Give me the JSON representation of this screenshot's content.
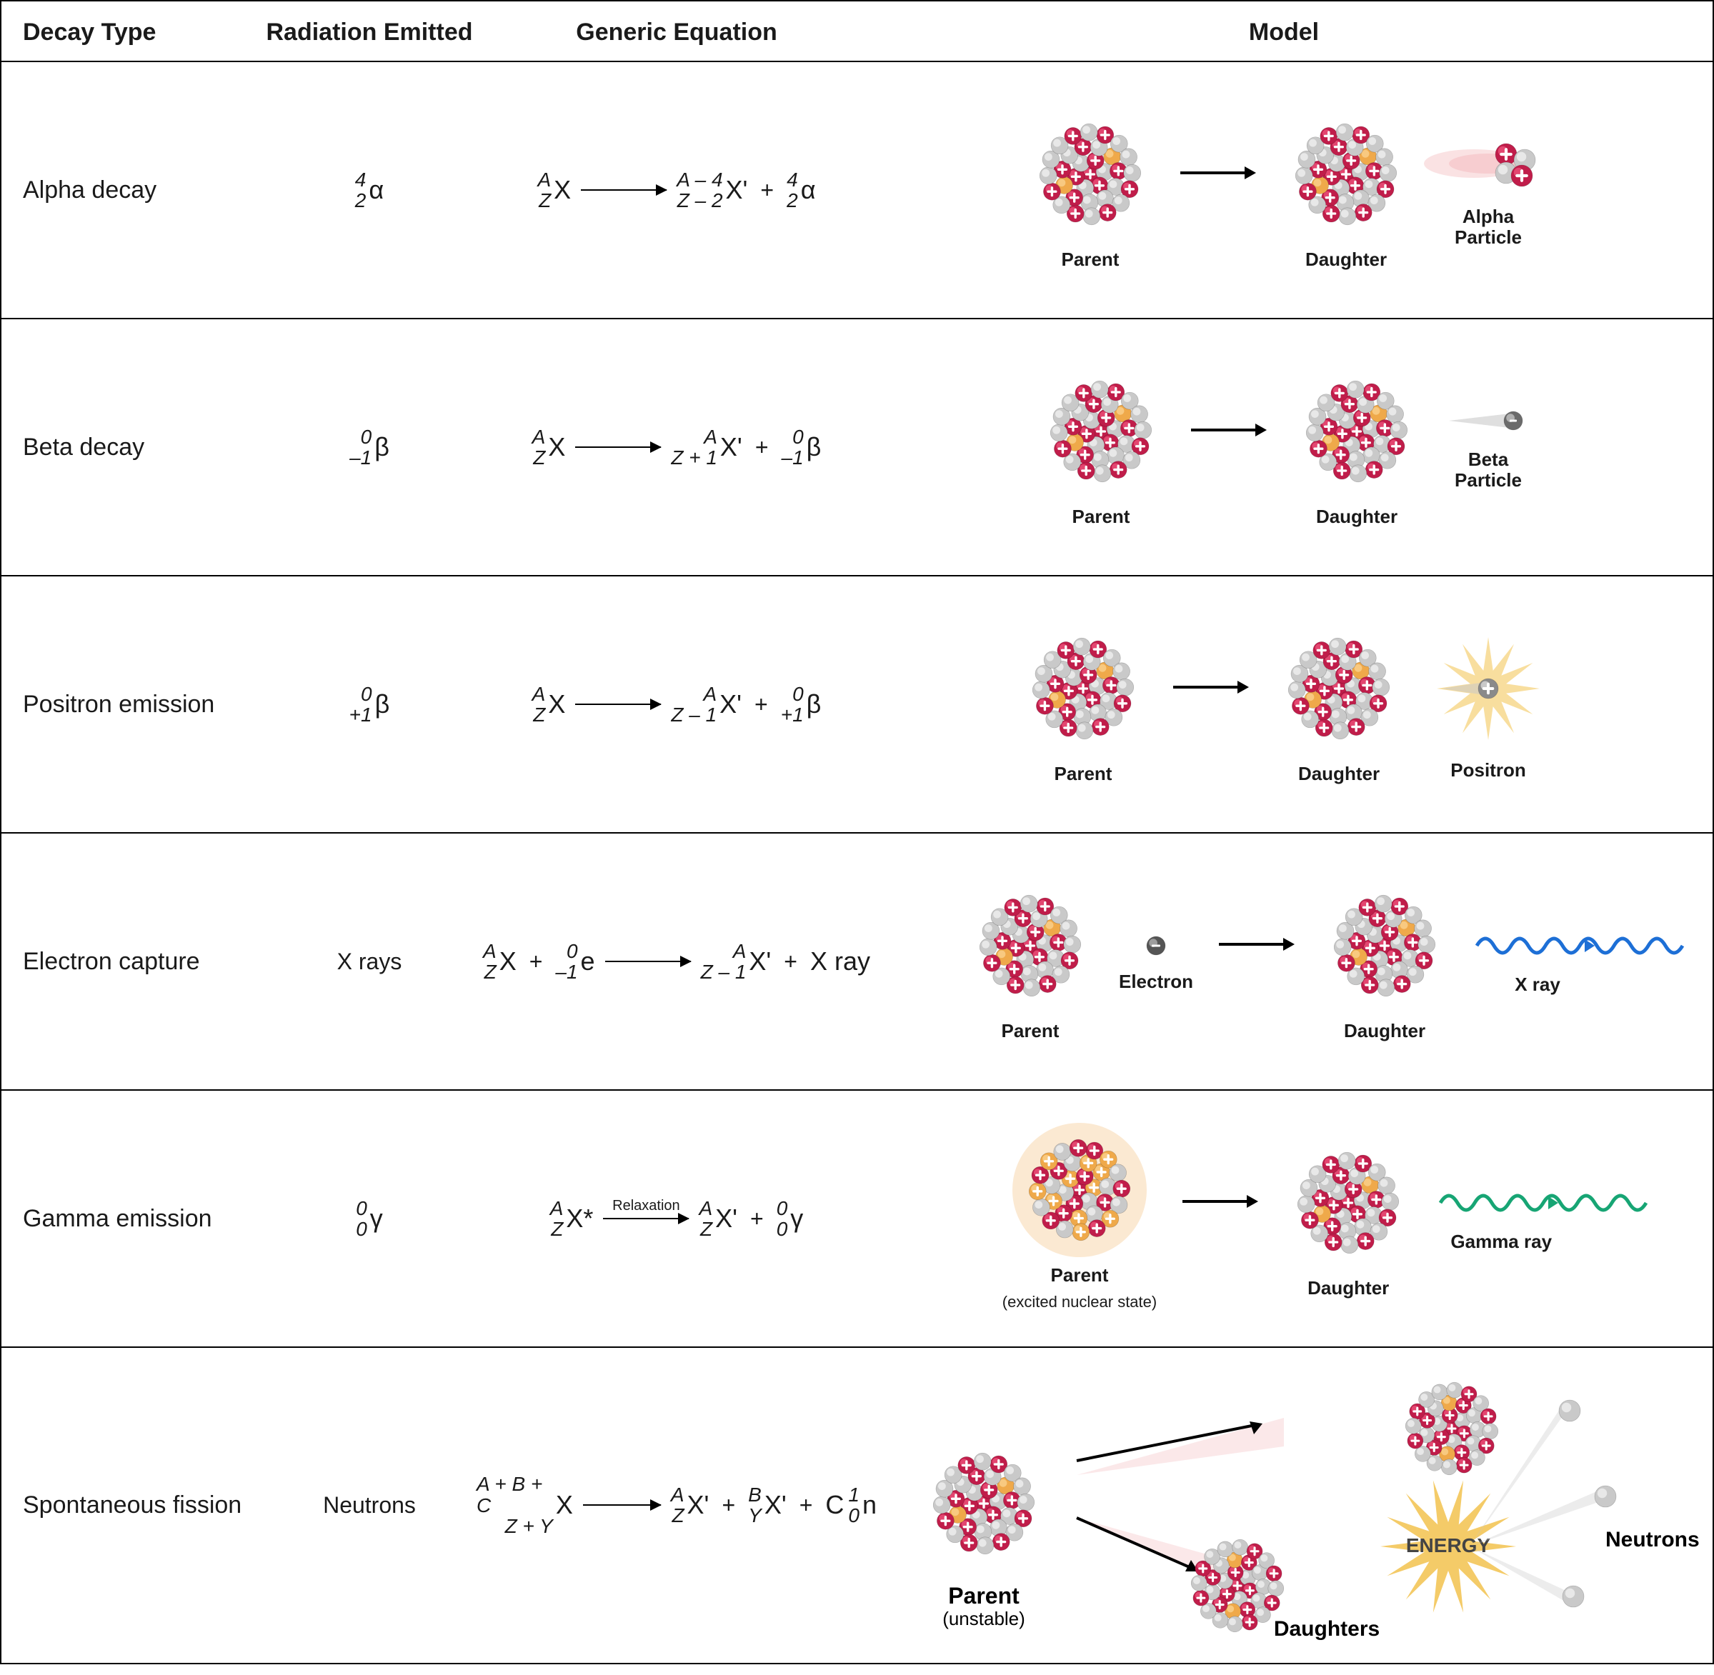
{
  "colors": {
    "proton": "#c01d4a",
    "proton_hi": "#e94d77",
    "neutron": "#c9c9c9",
    "neutron_hi": "#ededed",
    "excited": "#efa94a",
    "excited_hi": "#f9cf89",
    "border": "#000000",
    "xray_wave": "#1d6fd6",
    "gamma_wave": "#17a574",
    "energy_star": "#f2c24e",
    "motion_blur": "#f5c5c7",
    "text": "#1a1a1a"
  },
  "header": {
    "type": "Decay Type",
    "radiation": "Radiation Emitted",
    "equation": "Generic Equation",
    "model": "Model"
  },
  "rows": [
    {
      "name": "Alpha decay",
      "radiation": {
        "top": "4",
        "bottom": "2",
        "symbol": "α"
      },
      "equation": {
        "lhs": [
          {
            "top": "A",
            "bottom": "Z",
            "symbol": "X"
          }
        ],
        "rhs": [
          {
            "top": "A – 4",
            "bottom": "Z – 2",
            "symbol": "X'"
          },
          {
            "top": "4",
            "bottom": "2",
            "symbol": "α"
          }
        ]
      },
      "model": {
        "items": [
          {
            "kind": "nucleus-large",
            "label": "Parent"
          },
          {
            "kind": "arrow"
          },
          {
            "kind": "nucleus-large",
            "label": "Daughter"
          },
          {
            "kind": "alpha-particle",
            "label": "Alpha\nParticle"
          }
        ]
      }
    },
    {
      "name": "Beta decay",
      "radiation": {
        "top": "0",
        "bottom": "–1",
        "symbol": "β"
      },
      "equation": {
        "lhs": [
          {
            "top": "A",
            "bottom": "Z",
            "symbol": "X"
          }
        ],
        "rhs": [
          {
            "top": "A",
            "bottom": "Z + 1",
            "symbol": "X'"
          },
          {
            "top": "0",
            "bottom": "–1",
            "symbol": "β"
          }
        ]
      },
      "model": {
        "items": [
          {
            "kind": "nucleus-large",
            "label": "Parent"
          },
          {
            "kind": "arrow"
          },
          {
            "kind": "nucleus-large",
            "label": "Daughter"
          },
          {
            "kind": "beta-particle",
            "label": "Beta\nParticle"
          }
        ]
      }
    },
    {
      "name": "Positron emission",
      "radiation": {
        "top": "0",
        "bottom": "+1",
        "symbol": "β"
      },
      "equation": {
        "lhs": [
          {
            "top": "A",
            "bottom": "Z",
            "symbol": "X"
          }
        ],
        "rhs": [
          {
            "top": "A",
            "bottom": "Z – 1",
            "symbol": "X'"
          },
          {
            "top": "0",
            "bottom": "+1",
            "symbol": "β"
          }
        ]
      },
      "model": {
        "items": [
          {
            "kind": "nucleus-large",
            "label": "Parent"
          },
          {
            "kind": "arrow"
          },
          {
            "kind": "nucleus-large",
            "label": "Daughter"
          },
          {
            "kind": "positron",
            "label": "Positron"
          }
        ]
      }
    },
    {
      "name": "Electron capture",
      "radiation_text": "X rays",
      "equation": {
        "lhs": [
          {
            "top": "A",
            "bottom": "Z",
            "symbol": "X"
          },
          {
            "top": "0",
            "bottom": "–1",
            "symbol": "e"
          }
        ],
        "rhs": [
          {
            "top": "A",
            "bottom": "Z – 1",
            "symbol": "X'"
          },
          {
            "text": "X ray"
          }
        ]
      },
      "model": {
        "items": [
          {
            "kind": "nucleus-large",
            "label": "Parent"
          },
          {
            "kind": "electron",
            "label": "Electron"
          },
          {
            "kind": "arrow"
          },
          {
            "kind": "nucleus-large",
            "label": "Daughter"
          },
          {
            "kind": "xray-wave",
            "label": "X ray"
          }
        ]
      }
    },
    {
      "name": "Gamma emission",
      "radiation": {
        "top": "0",
        "bottom": "0",
        "symbol": "γ"
      },
      "equation": {
        "lhs": [
          {
            "top": "A",
            "bottom": "Z",
            "symbol": "X*"
          }
        ],
        "arrow_label": "Relaxation",
        "rhs": [
          {
            "top": "A",
            "bottom": "Z",
            "symbol": "X'"
          },
          {
            "top": "0",
            "bottom": "0",
            "symbol": "γ"
          }
        ]
      },
      "model": {
        "items": [
          {
            "kind": "nucleus-excited",
            "label": "Parent",
            "sublabel": "(excited nuclear state)"
          },
          {
            "kind": "arrow"
          },
          {
            "kind": "nucleus-large",
            "label": "Daughter"
          },
          {
            "kind": "gamma-wave",
            "label": "Gamma ray"
          }
        ]
      }
    },
    {
      "name": "Spontaneous fission",
      "radiation_text": "Neutrons",
      "equation": {
        "lhs": [
          {
            "top": "A + B + C",
            "bottom": "Z + Y",
            "symbol": "X"
          }
        ],
        "rhs": [
          {
            "top": "A",
            "bottom": "Z",
            "symbol": "X'"
          },
          {
            "top": "B",
            "bottom": "Y",
            "symbol": "X'"
          },
          {
            "top": "1",
            "bottom": "0",
            "symbol": "n",
            "coef": "C"
          }
        ]
      },
      "model": {
        "kind": "fission",
        "labels": {
          "parent": "Parent",
          "parent_sub": "(unstable)",
          "daughters": "Daughters",
          "neutrons": "Neutrons",
          "energy": "ENERGY"
        }
      }
    }
  ]
}
